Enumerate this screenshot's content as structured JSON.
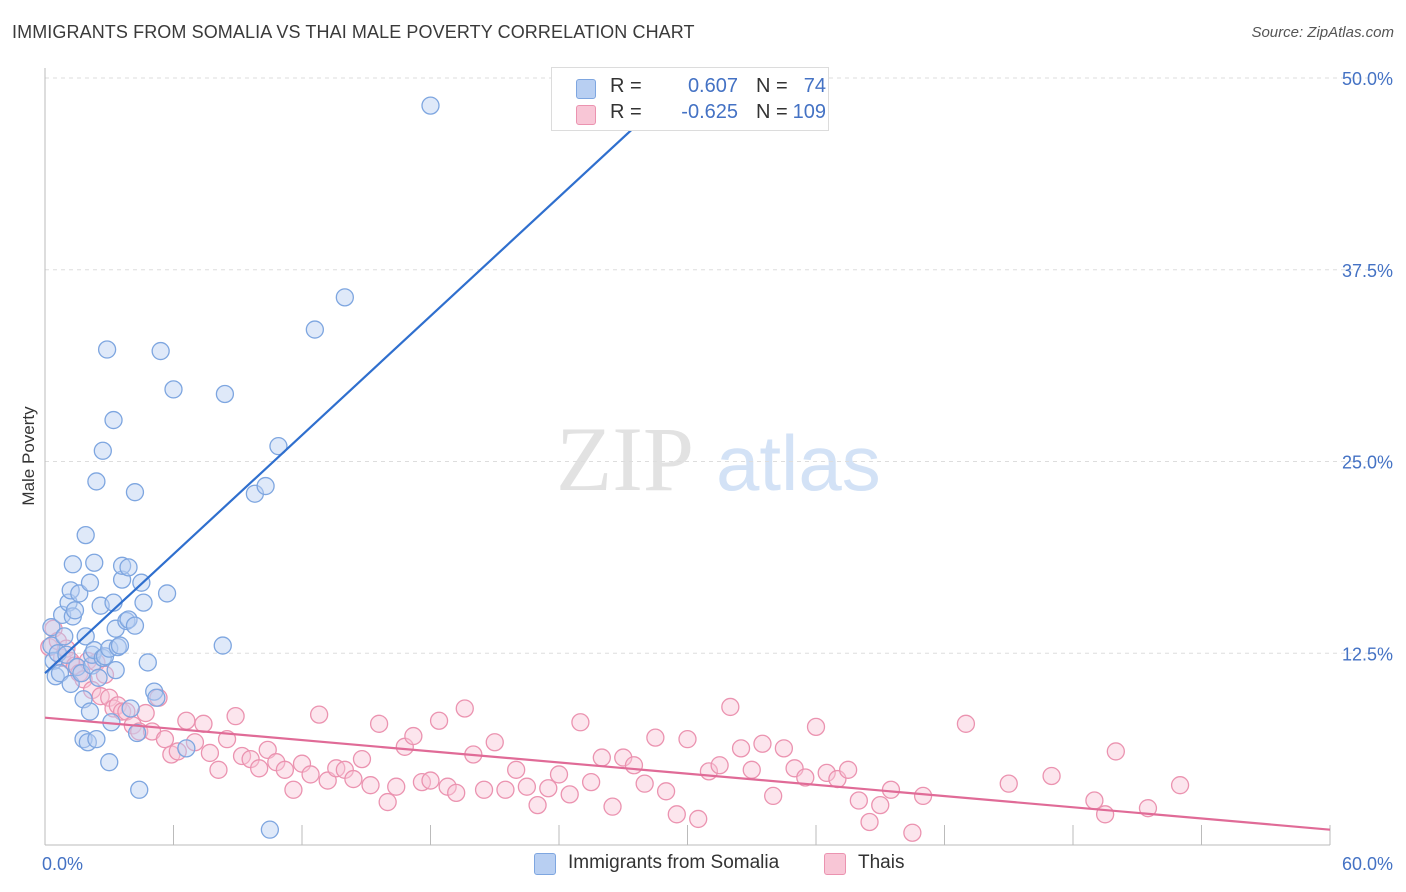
{
  "header": {
    "title": "IMMIGRANTS FROM SOMALIA VS THAI MALE POVERTY CORRELATION CHART",
    "source": "Source: ZipAtlas.com"
  },
  "watermark": {
    "zip": "ZIP",
    "atlas": "atlas"
  },
  "legend": {
    "r_label": "R =",
    "n_label": "N =",
    "rows": [
      {
        "name": "Immigrants from Somalia",
        "r": "0.607",
        "n": "74",
        "fill": "#b8cff2",
        "stroke": "#7ea6e0"
      },
      {
        "name": "Thais",
        "r": "-0.625",
        "n": "109",
        "fill": "#f8c6d6",
        "stroke": "#eb93b0"
      }
    ]
  },
  "chart_data": {
    "type": "scatter",
    "title": "IMMIGRANTS FROM SOMALIA VS THAI MALE POVERTY CORRELATION CHART",
    "xlabel": "",
    "ylabel": "Male Poverty",
    "xlim": [
      0,
      60
    ],
    "ylim": [
      0,
      50
    ],
    "x_tick_labels": [
      "0.0%",
      "60.0%"
    ],
    "y_ticks": [
      12.5,
      25.0,
      37.5,
      50.0
    ],
    "y_tick_labels": [
      "12.5%",
      "25.0%",
      "37.5%",
      "50.0%"
    ],
    "grid": "horizontal dashed",
    "legend_position": "top-center",
    "colors": {
      "somalia": "#7ea6e0",
      "somalia_fill": "#b8cff2",
      "somalia_line": "#2f6fce",
      "thais": "#eb93b0",
      "thais_fill": "#f8c6d6",
      "thais_line": "#e06b97",
      "tick": "#4472c4"
    },
    "series": [
      {
        "name": "Immigrants from Somalia",
        "trend": {
          "x": [
            0,
            30
          ],
          "y": [
            11.2,
            50.0
          ]
        },
        "points": [
          [
            0.3,
            14.2
          ],
          [
            0.3,
            13.0
          ],
          [
            0.4,
            12.0
          ],
          [
            0.5,
            11.0
          ],
          [
            0.6,
            12.5
          ],
          [
            0.7,
            11.2
          ],
          [
            0.8,
            15.0
          ],
          [
            0.9,
            13.6
          ],
          [
            1.0,
            12.4
          ],
          [
            1.1,
            15.8
          ],
          [
            1.2,
            10.5
          ],
          [
            1.2,
            16.6
          ],
          [
            1.3,
            14.9
          ],
          [
            1.3,
            18.3
          ],
          [
            1.4,
            15.3
          ],
          [
            1.5,
            11.6
          ],
          [
            1.6,
            16.4
          ],
          [
            1.7,
            11.2
          ],
          [
            1.8,
            9.5
          ],
          [
            1.8,
            6.9
          ],
          [
            1.9,
            20.2
          ],
          [
            1.9,
            13.6
          ],
          [
            2.0,
            6.7
          ],
          [
            2.1,
            17.1
          ],
          [
            2.1,
            8.7
          ],
          [
            2.2,
            11.7
          ],
          [
            2.2,
            12.4
          ],
          [
            2.3,
            12.7
          ],
          [
            2.3,
            18.4
          ],
          [
            2.4,
            23.7
          ],
          [
            2.4,
            6.9
          ],
          [
            2.5,
            10.9
          ],
          [
            2.6,
            15.6
          ],
          [
            2.7,
            25.7
          ],
          [
            2.7,
            12.2
          ],
          [
            2.8,
            12.3
          ],
          [
            2.9,
            32.3
          ],
          [
            3.0,
            12.8
          ],
          [
            3.0,
            5.4
          ],
          [
            3.1,
            8.0
          ],
          [
            3.2,
            15.8
          ],
          [
            3.2,
            27.7
          ],
          [
            3.3,
            14.1
          ],
          [
            3.3,
            11.4
          ],
          [
            3.4,
            12.9
          ],
          [
            3.5,
            13.0
          ],
          [
            3.6,
            17.3
          ],
          [
            3.6,
            18.2
          ],
          [
            3.8,
            14.6
          ],
          [
            3.9,
            14.7
          ],
          [
            3.9,
            18.1
          ],
          [
            4.0,
            8.9
          ],
          [
            4.2,
            23.0
          ],
          [
            4.2,
            14.3
          ],
          [
            4.3,
            7.3
          ],
          [
            4.4,
            3.6
          ],
          [
            4.5,
            17.1
          ],
          [
            4.6,
            15.8
          ],
          [
            4.8,
            11.9
          ],
          [
            5.1,
            10.0
          ],
          [
            5.2,
            9.6
          ],
          [
            5.4,
            32.2
          ],
          [
            5.7,
            16.4
          ],
          [
            6.0,
            29.7
          ],
          [
            6.6,
            6.3
          ],
          [
            8.4,
            29.4
          ],
          [
            8.3,
            13.0
          ],
          [
            9.8,
            22.9
          ],
          [
            10.3,
            23.4
          ],
          [
            10.5,
            1.0
          ],
          [
            10.9,
            26.0
          ],
          [
            14.0,
            35.7
          ],
          [
            12.6,
            33.6
          ],
          [
            18.0,
            48.2
          ]
        ]
      },
      {
        "name": "Thais",
        "trend": {
          "x": [
            0,
            60
          ],
          "y": [
            8.3,
            1.0
          ]
        },
        "points": [
          [
            0.2,
            12.9
          ],
          [
            0.4,
            14.1
          ],
          [
            0.6,
            13.3
          ],
          [
            0.8,
            12.2
          ],
          [
            1.0,
            12.8
          ],
          [
            1.2,
            12.0
          ],
          [
            1.4,
            11.7
          ],
          [
            1.6,
            11.2
          ],
          [
            1.8,
            10.8
          ],
          [
            2.0,
            12.0
          ],
          [
            2.2,
            10.1
          ],
          [
            2.4,
            11.9
          ],
          [
            2.6,
            9.7
          ],
          [
            2.8,
            11.1
          ],
          [
            3.0,
            9.6
          ],
          [
            3.2,
            8.9
          ],
          [
            3.4,
            9.1
          ],
          [
            3.6,
            8.7
          ],
          [
            3.8,
            8.7
          ],
          [
            4.1,
            7.8
          ],
          [
            4.4,
            7.4
          ],
          [
            4.7,
            8.6
          ],
          [
            5.0,
            7.4
          ],
          [
            5.3,
            9.6
          ],
          [
            5.6,
            6.9
          ],
          [
            5.9,
            5.9
          ],
          [
            6.2,
            6.1
          ],
          [
            6.6,
            8.1
          ],
          [
            7.0,
            6.7
          ],
          [
            7.4,
            7.9
          ],
          [
            7.7,
            6.0
          ],
          [
            8.1,
            4.9
          ],
          [
            8.5,
            6.9
          ],
          [
            8.9,
            8.4
          ],
          [
            9.2,
            5.8
          ],
          [
            9.6,
            5.6
          ],
          [
            10.0,
            5.0
          ],
          [
            10.4,
            6.2
          ],
          [
            10.8,
            5.4
          ],
          [
            11.2,
            4.9
          ],
          [
            11.6,
            3.6
          ],
          [
            12.0,
            5.3
          ],
          [
            12.4,
            4.6
          ],
          [
            12.8,
            8.5
          ],
          [
            13.2,
            4.2
          ],
          [
            13.6,
            5.0
          ],
          [
            14.0,
            4.9
          ],
          [
            14.4,
            4.3
          ],
          [
            14.8,
            5.6
          ],
          [
            15.2,
            3.9
          ],
          [
            15.6,
            7.9
          ],
          [
            16.0,
            2.8
          ],
          [
            16.4,
            3.8
          ],
          [
            16.8,
            6.4
          ],
          [
            17.2,
            7.1
          ],
          [
            17.6,
            4.1
          ],
          [
            18.0,
            4.2
          ],
          [
            18.4,
            8.1
          ],
          [
            18.8,
            3.8
          ],
          [
            19.2,
            3.4
          ],
          [
            19.6,
            8.9
          ],
          [
            20.0,
            5.9
          ],
          [
            20.5,
            3.6
          ],
          [
            21.0,
            6.7
          ],
          [
            21.5,
            3.6
          ],
          [
            22.0,
            4.9
          ],
          [
            22.5,
            3.8
          ],
          [
            23.0,
            2.6
          ],
          [
            23.5,
            3.7
          ],
          [
            24.0,
            4.6
          ],
          [
            24.5,
            3.3
          ],
          [
            25.0,
            8.0
          ],
          [
            25.5,
            4.1
          ],
          [
            26.0,
            5.7
          ],
          [
            26.5,
            2.5
          ],
          [
            27.0,
            5.7
          ],
          [
            27.5,
            5.2
          ],
          [
            28.0,
            4.0
          ],
          [
            28.5,
            7.0
          ],
          [
            29.0,
            3.5
          ],
          [
            29.5,
            2.0
          ],
          [
            30.0,
            6.9
          ],
          [
            30.5,
            1.7
          ],
          [
            31.0,
            4.8
          ],
          [
            31.5,
            5.2
          ],
          [
            32.0,
            9.0
          ],
          [
            32.5,
            6.3
          ],
          [
            33.0,
            4.9
          ],
          [
            33.5,
            6.6
          ],
          [
            34.0,
            3.2
          ],
          [
            34.5,
            6.3
          ],
          [
            35.0,
            5.0
          ],
          [
            35.5,
            4.4
          ],
          [
            36.0,
            7.7
          ],
          [
            36.5,
            4.7
          ],
          [
            37.0,
            4.3
          ],
          [
            37.5,
            4.9
          ],
          [
            38.0,
            2.9
          ],
          [
            38.5,
            1.5
          ],
          [
            39.0,
            2.6
          ],
          [
            39.5,
            3.6
          ],
          [
            40.5,
            0.8
          ],
          [
            41.0,
            3.2
          ],
          [
            43.0,
            7.9
          ],
          [
            45.0,
            4.0
          ],
          [
            47.0,
            4.5
          ],
          [
            49.0,
            2.9
          ],
          [
            50.0,
            6.1
          ],
          [
            49.5,
            2.0
          ],
          [
            51.5,
            2.4
          ],
          [
            53.0,
            3.9
          ]
        ]
      }
    ]
  }
}
